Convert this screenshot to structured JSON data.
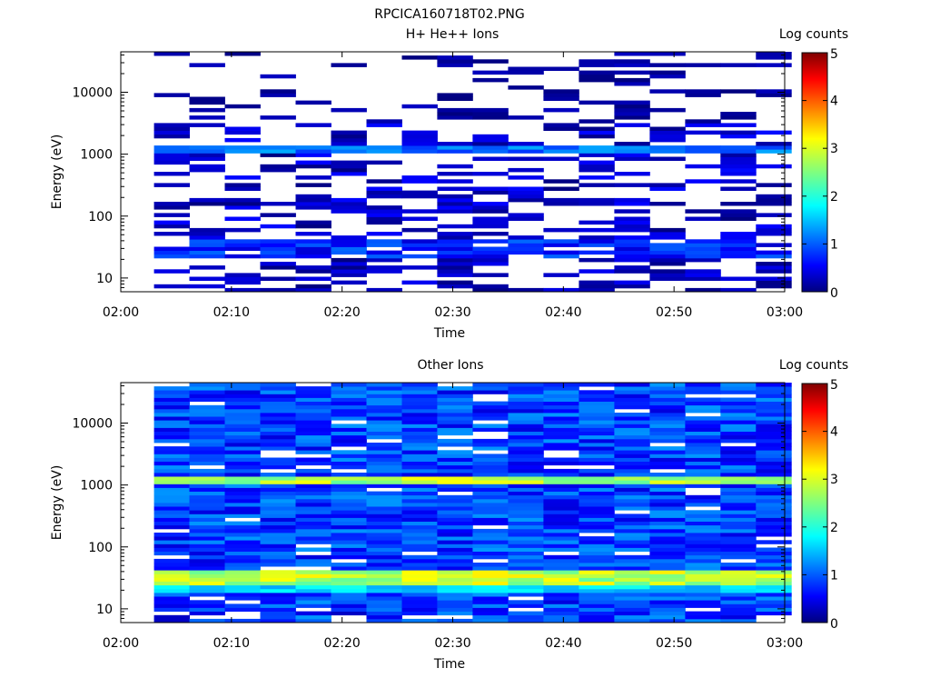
{
  "figure": {
    "title": "RPCICA160718T02.PNG"
  },
  "chart_data": [
    {
      "type": "heatmap",
      "title": "H+ He++ Ions",
      "xlabel": "Time",
      "ylabel": "Energy (eV)",
      "x_ticks": [
        "02:00",
        "02:10",
        "02:20",
        "02:30",
        "02:40",
        "02:50",
        "03:00"
      ],
      "xlim": [
        "02:00",
        "03:00"
      ],
      "y_scale": "log",
      "y_ticks": [
        10,
        100,
        1000,
        10000
      ],
      "ylim": [
        6,
        45000
      ],
      "colorbar": {
        "label": "Log counts",
        "ticks": [
          0,
          1,
          2,
          3,
          4,
          5
        ],
        "range": [
          0,
          5
        ]
      },
      "time_bins": 18,
      "bin_minutes": 3.2,
      "first_bin_start": "02:03",
      "notes": "Sparse counts (mostly 0–1 log counts) with a persistent band near 1100–1300 eV and low-energy enhancements around 25–40 eV."
    },
    {
      "type": "heatmap",
      "title": "Other Ions",
      "xlabel": "Time",
      "ylabel": "Energy (eV)",
      "x_ticks": [
        "02:00",
        "02:10",
        "02:20",
        "02:30",
        "02:40",
        "02:50",
        "03:00"
      ],
      "xlim": [
        "02:00",
        "03:00"
      ],
      "y_scale": "log",
      "y_ticks": [
        10,
        100,
        1000,
        10000
      ],
      "ylim": [
        6,
        45000
      ],
      "colorbar": {
        "label": "Log counts",
        "ticks": [
          0,
          1,
          2,
          3,
          4,
          5
        ],
        "range": [
          0,
          5
        ]
      },
      "time_bins": 18,
      "bin_minutes": 3.2,
      "first_bin_start": "02:03",
      "notes": "Dense counts across all energies; bright band (~2.5–3 log counts) near 1100–1300 eV and a strong band (~2.5–3.2 log counts) at ~25–40 eV."
    }
  ]
}
